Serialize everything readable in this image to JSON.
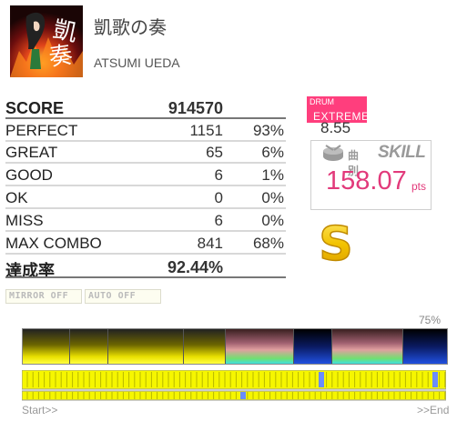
{
  "song": {
    "title": "凱歌の奏",
    "artist": "ATSUMI UEDA"
  },
  "results": {
    "score_label": "SCORE",
    "score_value": "914570",
    "rows": [
      {
        "label": "PERFECT",
        "count": "1151",
        "percent": "93%"
      },
      {
        "label": "GREAT",
        "count": "65",
        "percent": "6%"
      },
      {
        "label": "GOOD",
        "count": "6",
        "percent": "1%"
      },
      {
        "label": "OK",
        "count": "0",
        "percent": "0%"
      },
      {
        "label": "MISS",
        "count": "6",
        "percent": "0%"
      },
      {
        "label": "MAX COMBO",
        "count": "841",
        "percent": "68%"
      }
    ],
    "achievement_label": "達成率",
    "achievement_value": "92.44%"
  },
  "options": {
    "mirror": "MIRROR OFF",
    "auto": "AUTO OFF"
  },
  "difficulty": {
    "instrument": "DRUM",
    "name": "EXTREME",
    "level": "8.55",
    "color": "#ff3e7d"
  },
  "skill": {
    "prefix": "曲別",
    "label": "SKILL",
    "value": "158.07",
    "unit": "pts",
    "icon": "drum-icon"
  },
  "rank": {
    "letter": "S",
    "color": "#f2c200"
  },
  "graph": {
    "percent": "75%",
    "start_label": "Start>>",
    "end_label": ">>End"
  }
}
